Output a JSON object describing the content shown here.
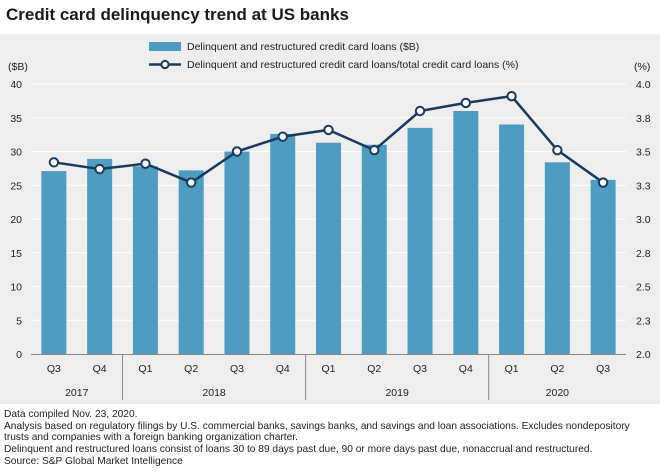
{
  "title": "Credit card delinquency trend at US banks",
  "chart_data": {
    "type": "bar",
    "categories": [
      "Q3",
      "Q4",
      "Q1",
      "Q2",
      "Q3",
      "Q4",
      "Q1",
      "Q2",
      "Q3",
      "Q4",
      "Q1",
      "Q2",
      "Q3"
    ],
    "years": [
      {
        "label": "2017",
        "quarters": 2
      },
      {
        "label": "2018",
        "quarters": 4
      },
      {
        "label": "2019",
        "quarters": 4
      },
      {
        "label": "2020",
        "quarters": 3
      }
    ],
    "series": [
      {
        "name": "Delinquent and restructured credit card loans ($B)",
        "type": "bar",
        "axis": "left",
        "color": "#4f9cc3",
        "values": [
          27.1,
          28.9,
          27.8,
          27.2,
          30.0,
          32.6,
          31.3,
          31.0,
          33.5,
          36.0,
          34.0,
          28.4,
          25.8
        ]
      },
      {
        "name": "Delinquent and restructured credit card loans/total credit card loans (%)",
        "type": "line",
        "axis": "right",
        "color": "#173a5e",
        "values": [
          3.42,
          3.37,
          3.41,
          3.27,
          3.5,
          3.61,
          3.66,
          3.51,
          3.8,
          3.86,
          3.91,
          3.51,
          3.27
        ]
      }
    ],
    "ylabel": "($B)",
    "ylabel_right": "(%)",
    "ylim": [
      0,
      40
    ],
    "yticks": [
      "0",
      "5",
      "10",
      "15",
      "20",
      "25",
      "30",
      "35",
      "40"
    ],
    "ylim_right": [
      2.0,
      4.0
    ],
    "yticks_right": [
      "2.0",
      "2.3",
      "2.5",
      "2.8",
      "3.0",
      "3.3",
      "3.5",
      "3.8",
      "4.0"
    ],
    "grid": true,
    "legend_position": "top"
  },
  "footnotes": [
    "Data compiled Nov. 23, 2020.",
    "Analysis based on regulatory filings by U.S. commercial banks, savings banks, and savings and loan associations. Excludes nondepository",
    "trusts and companies with a foreign banking organization charter.",
    "Delinquent and restructured loans consist of loans 30 to 89 days past due, 90 or more days past due, nonaccrual and restructured.",
    "Source: S&P Global Market Intelligence"
  ]
}
